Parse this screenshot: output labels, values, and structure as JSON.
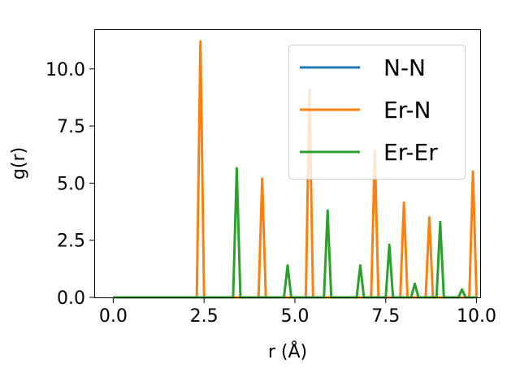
{
  "chart_data": {
    "type": "line",
    "xlabel": "r (Å)",
    "ylabel": "g(r)",
    "xlim": [
      -0.5,
      10.1
    ],
    "ylim": [
      0,
      11.7
    ],
    "xticks": [
      0.0,
      2.5,
      5.0,
      7.5,
      10.0
    ],
    "xtick_labels": [
      "0.0",
      "2.5",
      "5.0",
      "7.5",
      "10.0"
    ],
    "yticks": [
      0.0,
      2.5,
      5.0,
      7.5,
      10.0
    ],
    "ytick_labels": [
      "0.0",
      "2.5",
      "5.0",
      "7.5",
      "10.0"
    ],
    "grid": false,
    "legend_position": "top-right",
    "peak_halfwidth": 0.1,
    "series": [
      {
        "name": "N-N",
        "color": "#1f77b4",
        "x": [
          0.0,
          10.0
        ],
        "y": [
          0.0,
          0.0
        ]
      },
      {
        "name": "Er-N",
        "color": "#ff7f0e",
        "peaks": [
          {
            "x": 2.4,
            "y": 11.2
          },
          {
            "x": 4.1,
            "y": 5.2
          },
          {
            "x": 5.4,
            "y": 9.1
          },
          {
            "x": 7.2,
            "y": 6.4
          },
          {
            "x": 8.0,
            "y": 4.15
          },
          {
            "x": 8.7,
            "y": 3.5
          },
          {
            "x": 9.9,
            "y": 5.5
          }
        ]
      },
      {
        "name": "Er-Er",
        "color": "#2ca02c",
        "peaks": [
          {
            "x": 3.4,
            "y": 5.65
          },
          {
            "x": 4.8,
            "y": 1.4
          },
          {
            "x": 5.9,
            "y": 3.8
          },
          {
            "x": 6.8,
            "y": 1.4
          },
          {
            "x": 7.6,
            "y": 2.3
          },
          {
            "x": 8.3,
            "y": 0.6
          },
          {
            "x": 9.0,
            "y": 3.3
          },
          {
            "x": 9.6,
            "y": 0.35
          }
        ]
      }
    ]
  }
}
